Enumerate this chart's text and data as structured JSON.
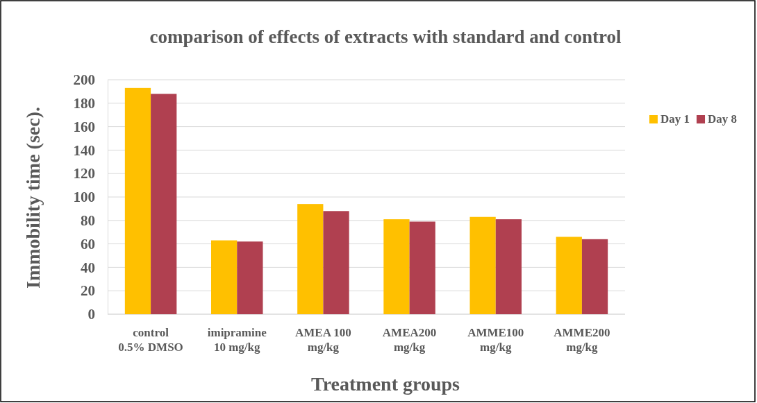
{
  "chart_data": {
    "type": "bar",
    "title": "comparison of effects of extracts with standard and control",
    "xlabel": "Treatment groups",
    "ylabel": "Immobility time (sec).",
    "categories": [
      "control 0.5% DMSO",
      "imipramine 10 mg/kg",
      "AMEA 100 mg/kg",
      "AMEA200 mg/kg",
      "AMME100 mg/kg",
      "AMME200 mg/kg"
    ],
    "series": [
      {
        "name": "Day 1",
        "color": "#ffc000",
        "values": [
          193,
          63,
          94,
          81,
          83,
          66
        ]
      },
      {
        "name": "Day 8",
        "color": "#b04050",
        "values": [
          188,
          62,
          88,
          79,
          81,
          64
        ]
      }
    ],
    "ylim": [
      0,
      200
    ],
    "yticks": [
      0,
      20,
      40,
      60,
      80,
      100,
      120,
      140,
      160,
      180,
      200
    ],
    "grid": "y",
    "legend": "right"
  }
}
